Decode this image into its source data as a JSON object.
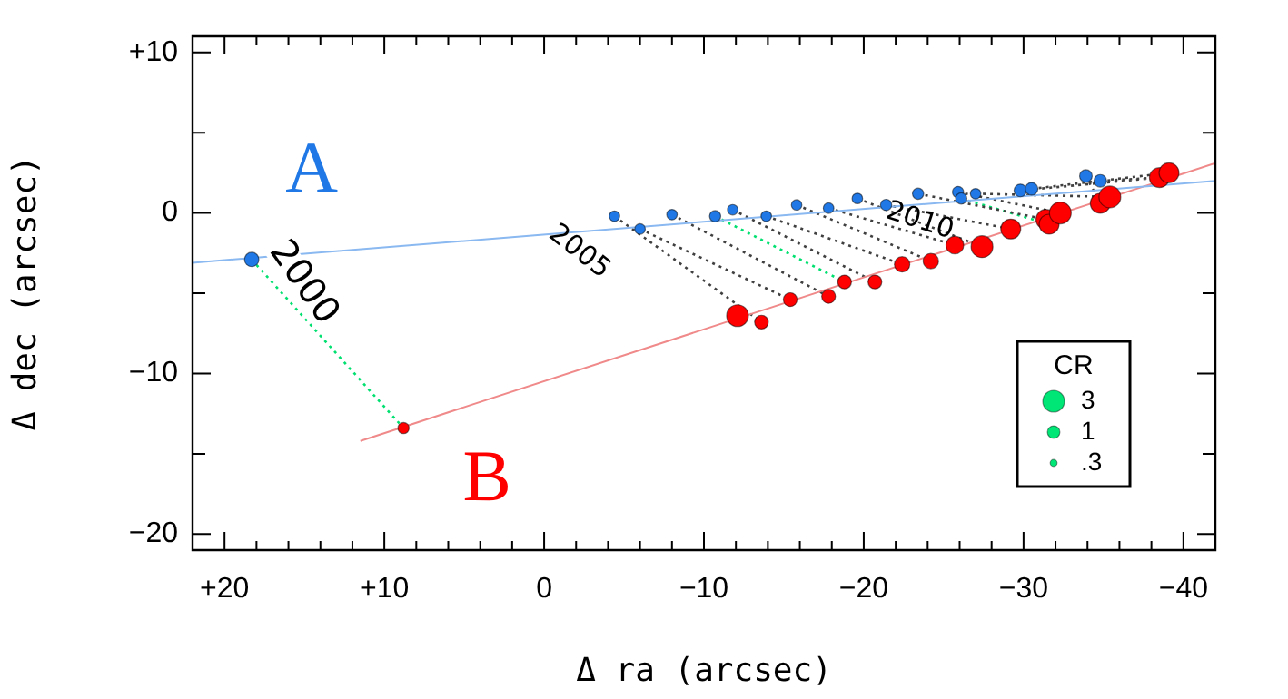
{
  "chart_data": {
    "type": "bubble",
    "xlabel": "Δ ra (arcsec)",
    "ylabel": "Δ dec (arcsec)",
    "legend_title": "CR",
    "grid": false,
    "xlim": [
      22,
      -42
    ],
    "ylim": [
      -21,
      11
    ],
    "xticks": [
      {
        "value": 20,
        "label": "+20"
      },
      {
        "value": 18,
        "label": null
      },
      {
        "value": 16,
        "label": null
      },
      {
        "value": 14,
        "label": null
      },
      {
        "value": 12,
        "label": null
      },
      {
        "value": 10,
        "label": "+10"
      },
      {
        "value": 8,
        "label": null
      },
      {
        "value": 6,
        "label": null
      },
      {
        "value": 4,
        "label": null
      },
      {
        "value": 2,
        "label": null
      },
      0,
      {
        "value": -2,
        "label": null
      },
      {
        "value": -4,
        "label": null
      },
      {
        "value": -6,
        "label": null
      },
      {
        "value": -8,
        "label": null
      },
      {
        "value": -10,
        "label": "−10"
      },
      {
        "value": -12,
        "label": null
      },
      {
        "value": -14,
        "label": null
      },
      {
        "value": -16,
        "label": null
      },
      {
        "value": -18,
        "label": null
      },
      {
        "value": -20,
        "label": "−20"
      },
      {
        "value": -22,
        "label": null
      },
      {
        "value": -24,
        "label": null
      },
      {
        "value": -26,
        "label": null
      },
      {
        "value": -28,
        "label": null
      },
      {
        "value": -30,
        "label": "−30"
      },
      {
        "value": -32,
        "label": null
      },
      {
        "value": -34,
        "label": null
      },
      {
        "value": -36,
        "label": null
      },
      {
        "value": -38,
        "label": null
      },
      {
        "value": -40,
        "label": "−40"
      }
    ],
    "yticks": [
      {
        "value": 10,
        "label": "+10"
      },
      {
        "value": 5,
        "label": null
      },
      0,
      {
        "value": -5,
        "label": null
      },
      {
        "value": -10,
        "label": "−10"
      },
      {
        "value": -15,
        "label": null
      },
      {
        "value": -20,
        "label": "−20"
      }
    ],
    "size_legend": [
      3,
      1,
      {
        "value": 0.3,
        "label": ".3"
      }
    ],
    "annotations": [
      "2000",
      "2005",
      "2010"
    ],
    "series": [
      {
        "type": "line",
        "color": "#8ab8f0",
        "x": [
          22,
          -42
        ],
        "values": [
          -3.1,
          2.0
        ]
      },
      {
        "type": "line",
        "color": "#f08a8a",
        "x": [
          11.5,
          -42
        ],
        "values": [
          -14.2,
          3.1
        ]
      },
      {
        "type": "line",
        "line_style": "dotted",
        "color": "#404040",
        "x": [
          -4.4,
          -13.6,
          null,
          -6.0,
          -15.4,
          null,
          -8.0,
          -17.8,
          null,
          -11.8,
          -20.7,
          null,
          -13.9,
          -22.4,
          null,
          -15.8,
          -24.2,
          null,
          -17.8,
          -25.7,
          null,
          -19.6,
          -27.4,
          null,
          -21.4,
          -29.2,
          null,
          -23.4,
          -31.4,
          null,
          -25.9,
          -32.3,
          null,
          -27.0,
          -35.4,
          null,
          -29.8,
          -38.5,
          null,
          -30.5,
          -39.1,
          null,
          -33.9,
          -34.8,
          null,
          -34.8,
          -38.5
        ],
        "values": [
          -0.2,
          -6.8,
          null,
          -1.0,
          -5.4,
          null,
          -0.1,
          -5.2,
          null,
          0.2,
          -4.3,
          null,
          -0.2,
          -3.2,
          null,
          0.5,
          -3.0,
          null,
          0.3,
          -2.0,
          null,
          0.9,
          -2.1,
          null,
          0.5,
          -1.0,
          null,
          1.2,
          -0.4,
          null,
          1.3,
          0.0,
          null,
          1.2,
          1.0,
          null,
          1.4,
          2.2,
          null,
          1.5,
          2.5,
          null,
          2.3,
          0.6,
          null,
          2.0,
          2.2
        ]
      },
      {
        "type": "line",
        "line_style": "dotted",
        "color": "#00e070",
        "x": [
          18.3,
          8.8,
          null,
          -10.7,
          -18.8,
          null,
          -26.1,
          -31.6
        ],
        "values": [
          -2.9,
          -13.4,
          null,
          -0.2,
          -4.3,
          null,
          0.9,
          -0.7
        ]
      },
      {
        "name": "A",
        "color": "#1f78e6",
        "x": [
          18.3,
          -4.4,
          -6.0,
          -8.0,
          -10.7,
          -11.8,
          -13.9,
          -15.8,
          -17.8,
          -19.6,
          -21.4,
          -23.4,
          -25.9,
          -26.1,
          -27.0,
          -29.8,
          -30.5,
          -33.9,
          -34.8
        ],
        "values": [
          -2.9,
          -0.2,
          -1.0,
          -0.1,
          -0.2,
          0.2,
          -0.2,
          0.5,
          0.3,
          0.9,
          0.5,
          1.2,
          1.3,
          0.9,
          1.2,
          1.4,
          1.5,
          2.3,
          2.0
        ],
        "sizes": [
          1.3,
          0.7,
          0.7,
          0.7,
          0.8,
          0.7,
          0.7,
          0.7,
          0.7,
          0.7,
          0.8,
          0.8,
          0.8,
          0.8,
          0.7,
          1,
          1,
          1,
          1
        ]
      },
      {
        "name": "B",
        "color": "#ff0000",
        "x": [
          8.8,
          -12.1,
          -13.6,
          -15.4,
          -17.8,
          -18.8,
          -20.7,
          -22.4,
          -24.2,
          -25.7,
          -27.4,
          -29.2,
          -31.4,
          -31.6,
          -32.3,
          -34.8,
          -35.4,
          -38.5,
          -39.1
        ],
        "values": [
          -13.4,
          -6.4,
          -6.8,
          -5.4,
          -5.2,
          -4.3,
          -4.3,
          -3.2,
          -3.0,
          -2.0,
          -2.1,
          -1.0,
          -0.4,
          -0.7,
          0.0,
          0.6,
          1.0,
          2.2,
          2.5
        ],
        "sizes": [
          0.8,
          3,
          1.2,
          1.2,
          1.2,
          1.2,
          1.2,
          1.5,
          1.5,
          2,
          3,
          2.5,
          2.5,
          2.5,
          3,
          2.5,
          3,
          2.5,
          2.5
        ]
      }
    ]
  }
}
